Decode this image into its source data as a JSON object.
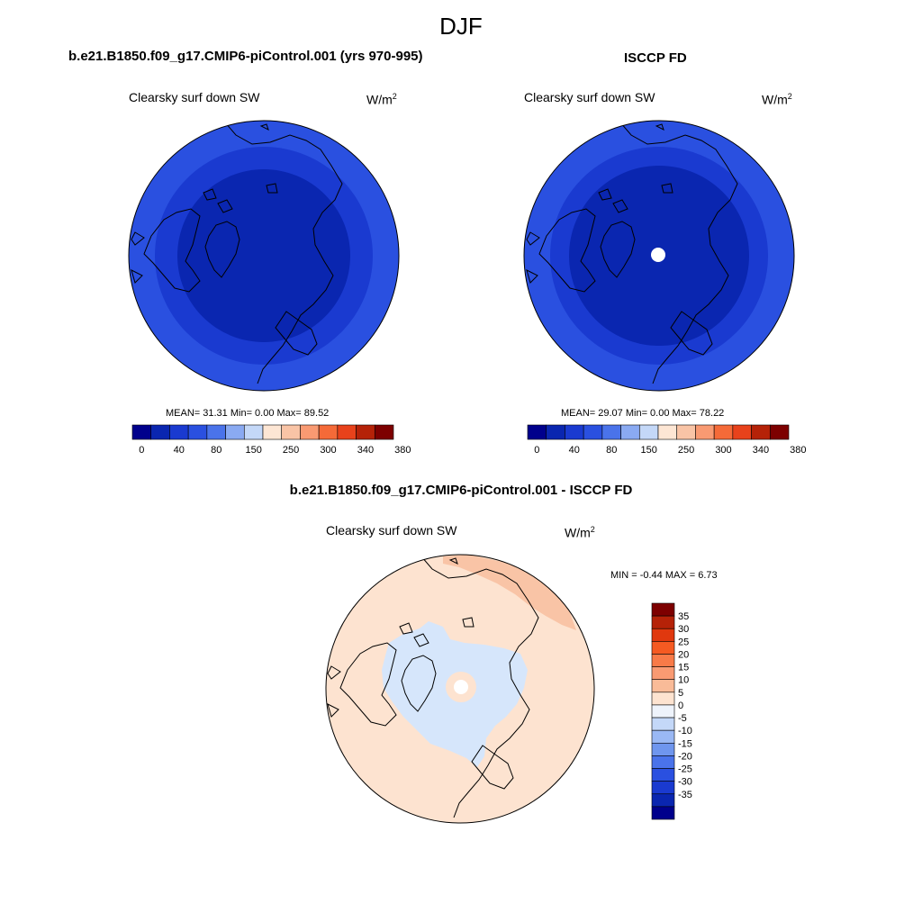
{
  "page": {
    "title": "DJF"
  },
  "units": {
    "base": "W/m",
    "exp": "2"
  },
  "colors": {
    "ocean_blue": "#2a50e0",
    "mid_blue": "#1a3ad0",
    "dark_blue": "#0a26b0",
    "pale_blue": "#d6e6fb",
    "peach": "#fde3d0",
    "salmon": "#f9c4a6",
    "missing": "#ffffff",
    "coast": "#000000"
  },
  "chart_data": [
    {
      "type": "heatmap",
      "projection": "north-polar-stereographic",
      "title": "b.e21.B1850.f09_g17.CMIP6-piControl.001 (yrs 970-995)",
      "variable": "Clearsky surf down SW",
      "stats": {
        "mean": "31.31",
        "min": "0.00",
        "max": "89.52"
      },
      "stats_text": "MEAN=  31.31  Min=   0.00  Max=  89.52",
      "colorbar": {
        "orientation": "horizontal",
        "colors": [
          "#00008c",
          "#0a26b0",
          "#1a3ad0",
          "#2a50e0",
          "#4a73ea",
          "#8aaaf2",
          "#c4d8f8",
          "#fde6d4",
          "#f9c4a6",
          "#f99a72",
          "#f56a38",
          "#e8421b",
          "#b52208",
          "#7d0000"
        ],
        "tick_labels": [
          "0",
          "40",
          "80",
          "150",
          "250",
          "300",
          "340",
          "380"
        ]
      }
    },
    {
      "type": "heatmap",
      "projection": "north-polar-stereographic",
      "title": "ISCCP FD",
      "variable": "Clearsky surf down SW",
      "stats": {
        "mean": "29.07",
        "min": "0.00",
        "max": "78.22"
      },
      "stats_text": "MEAN=  29.07  Min=   0.00  Max=  78.22",
      "colorbar": {
        "orientation": "horizontal",
        "colors": [
          "#00008c",
          "#0a26b0",
          "#1a3ad0",
          "#2a50e0",
          "#4a73ea",
          "#8aaaf2",
          "#c4d8f8",
          "#fde6d4",
          "#f9c4a6",
          "#f99a72",
          "#f56a38",
          "#e8421b",
          "#b52208",
          "#7d0000"
        ],
        "tick_labels": [
          "0",
          "40",
          "80",
          "150",
          "250",
          "300",
          "340",
          "380"
        ]
      }
    },
    {
      "type": "heatmap",
      "projection": "north-polar-stereographic",
      "title": "b.e21.B1850.f09_g17.CMIP6-piControl.001 - ISCCP FD",
      "variable": "Clearsky surf down SW",
      "stats": {
        "min": "-0.44",
        "max": "6.73"
      },
      "stats_text": "MIN =  -0.44 MAX =   6.73",
      "colorbar": {
        "orientation": "vertical",
        "colors": [
          "#7d0000",
          "#b52208",
          "#e0380e",
          "#f55a22",
          "#f87a48",
          "#f99a72",
          "#f9bb98",
          "#fde3d0",
          "#eef3fb",
          "#c4d8f8",
          "#9ab8f4",
          "#6f96ee",
          "#4a73ea",
          "#2a50e0",
          "#1a3ad0",
          "#0a26b0",
          "#00008c"
        ],
        "tick_labels": [
          "35",
          "30",
          "25",
          "20",
          "15",
          "10",
          "5",
          "0",
          "-5",
          "-10",
          "-15",
          "-20",
          "-25",
          "-30",
          "-35"
        ]
      }
    }
  ]
}
